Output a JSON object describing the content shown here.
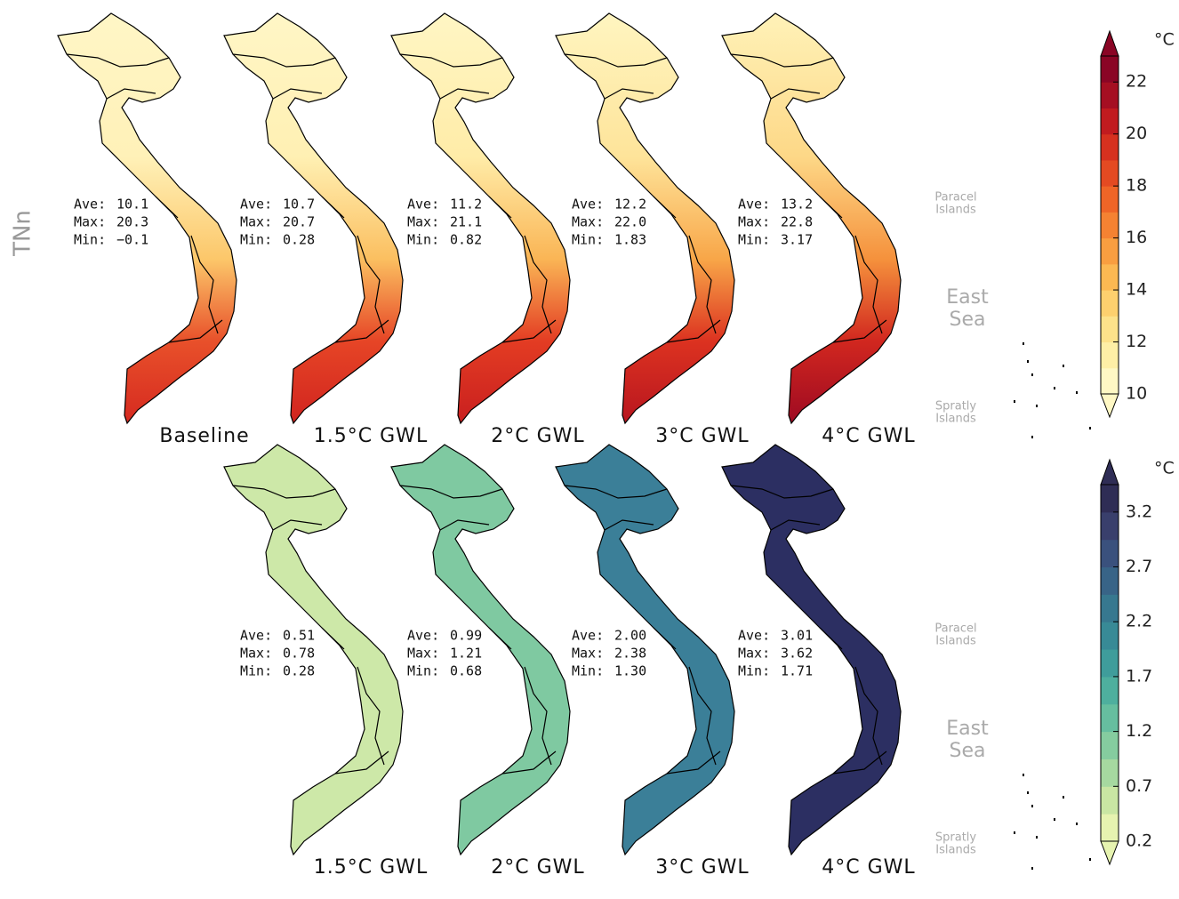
{
  "ylabel": "TNn",
  "rows": [
    {
      "panels": [
        {
          "label": "Baseline",
          "stats": [
            [
              "Ave:",
              "10.1"
            ],
            [
              "Max:",
              "20.3"
            ],
            [
              "Min:",
              "−0.1"
            ]
          ]
        },
        {
          "label": "1.5°C  GWL",
          "stats": [
            [
              "Ave:",
              "10.7"
            ],
            [
              "Max:",
              "20.7"
            ],
            [
              "Min:",
              "0.28"
            ]
          ]
        },
        {
          "label": "2°C  GWL",
          "stats": [
            [
              "Ave:",
              "11.2"
            ],
            [
              "Max:",
              "21.1"
            ],
            [
              "Min:",
              "0.82"
            ]
          ]
        },
        {
          "label": "3°C  GWL",
          "stats": [
            [
              "Ave:",
              "12.2"
            ],
            [
              "Max:",
              "22.0"
            ],
            [
              "Min:",
              "1.83"
            ]
          ]
        },
        {
          "label": "4°C  GWL",
          "stats": [
            [
              "Ave:",
              "13.2"
            ],
            [
              "Max:",
              "22.8"
            ],
            [
              "Min:",
              "3.17"
            ]
          ]
        }
      ],
      "paracel": [
        "Paracel",
        "Islands"
      ],
      "sea": [
        "East",
        "Sea"
      ],
      "spratly": [
        "Spratly",
        "Islands"
      ],
      "colorbar": {
        "unit": "°C",
        "lim": [
          10,
          23
        ],
        "ticks": [
          10,
          12,
          14,
          16,
          18,
          20,
          22
        ],
        "colors": [
          "#fff8c4",
          "#feefa6",
          "#fde28a",
          "#fdd06e",
          "#fcb852",
          "#f99e40",
          "#f58232",
          "#ef6527",
          "#e44a22",
          "#d6311f",
          "#c11b1f",
          "#a50f22",
          "#8a0525"
        ]
      }
    },
    {
      "panels": [
        {
          "label": "1.5°C  GWL",
          "stats": [
            [
              "Ave:",
              "0.51"
            ],
            [
              "Max:",
              "0.78"
            ],
            [
              "Min:",
              "0.28"
            ]
          ]
        },
        {
          "label": "2°C  GWL",
          "stats": [
            [
              "Ave:",
              "0.99"
            ],
            [
              "Max:",
              "1.21"
            ],
            [
              "Min:",
              "0.68"
            ]
          ]
        },
        {
          "label": "3°C  GWL",
          "stats": [
            [
              "Ave:",
              "2.00"
            ],
            [
              "Max:",
              "2.38"
            ],
            [
              "Min:",
              "1.30"
            ]
          ]
        },
        {
          "label": "4°C  GWL",
          "stats": [
            [
              "Ave:",
              "3.01"
            ],
            [
              "Max:",
              "3.62"
            ],
            [
              "Min:",
              "1.71"
            ]
          ]
        }
      ],
      "paracel": [
        "Paracel",
        "Islands"
      ],
      "sea": [
        "East",
        "Sea"
      ],
      "spratly": [
        "Spratly",
        "Islands"
      ],
      "colorbar": {
        "unit": "°C",
        "lim": [
          0.2,
          3.45
        ],
        "ticks": [
          0.2,
          0.7,
          1.2,
          1.7,
          2.2,
          2.7,
          3.2
        ],
        "colors": [
          "#e6f3b0",
          "#c9e6a3",
          "#a6d9a0",
          "#85cc9f",
          "#66be9f",
          "#4eaf9e",
          "#3f9d9b",
          "#388a96",
          "#37788f",
          "#386487",
          "#3a517d",
          "#393f6c",
          "#2f2d55"
        ]
      }
    }
  ]
}
